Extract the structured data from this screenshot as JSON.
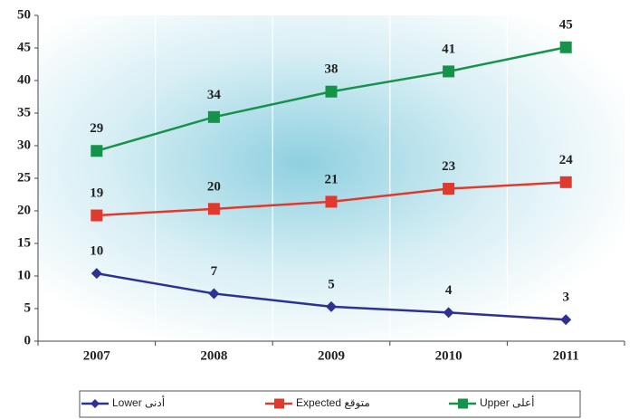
{
  "chart_data": {
    "type": "line",
    "categories": [
      "2007",
      "2008",
      "2009",
      "2010",
      "2011"
    ],
    "series": [
      {
        "name": "Lower أدنى",
        "color": "#2e3192",
        "marker": "diamond",
        "values": [
          10.4,
          7.3,
          5.3,
          4.4,
          3.3
        ],
        "value_labels": [
          "10",
          "7",
          "5",
          "4",
          "3"
        ]
      },
      {
        "name": "Expected متوقع",
        "color": "#e03a2f",
        "marker": "square",
        "values": [
          19.3,
          20.3,
          21.4,
          23.4,
          24.4
        ],
        "value_labels": [
          "19",
          "20",
          "21",
          "23",
          "24"
        ]
      },
      {
        "name": "Upper أعلى",
        "color": "#17924a",
        "marker": "square",
        "values": [
          29.2,
          34.4,
          38.3,
          41.4,
          45.1
        ],
        "value_labels": [
          "29",
          "34",
          "38",
          "41",
          "45"
        ]
      }
    ],
    "ylim": [
      0,
      50
    ],
    "yticks": [
      0,
      5,
      10,
      15,
      20,
      25,
      30,
      35,
      40,
      45,
      50
    ],
    "grid": true,
    "legend": "bottom"
  }
}
